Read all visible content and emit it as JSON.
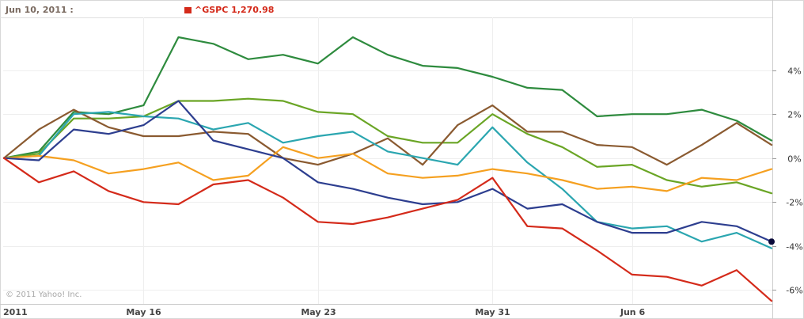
{
  "header": {
    "date_label": "Jun 10, 2011 :",
    "legend_label": "^GSPC 1,270.98"
  },
  "copyright": "© 2011 Yahoo! Inc.",
  "chart_data": {
    "type": "line",
    "x_labels": [
      "2011",
      "May 16",
      "May 23",
      "May 31",
      "Jun 6"
    ],
    "y_ticks": [
      "-6%",
      "-4%",
      "-2%",
      "0%",
      "2%",
      "4%"
    ],
    "ylim": [
      -6.6,
      6.4
    ],
    "grid": true,
    "x": [
      "May 10",
      "May 11",
      "May 12",
      "May 13",
      "May 16",
      "May 17",
      "May 18",
      "May 19",
      "May 20",
      "May 23",
      "May 24",
      "May 25",
      "May 26",
      "May 27",
      "May 31",
      "Jun 1",
      "Jun 2",
      "Jun 3",
      "Jun 6",
      "Jun 7",
      "Jun 8",
      "Jun 9",
      "Jun 10"
    ],
    "series": [
      {
        "name": "^GSPC 1,270.98",
        "color": "#d42a1a",
        "values": [
          0.0,
          -1.1,
          -0.6,
          -1.5,
          -2.0,
          -2.1,
          -1.2,
          -1.0,
          -1.8,
          -2.9,
          -3.0,
          -2.7,
          -2.3,
          -1.9,
          -0.9,
          -3.1,
          -3.2,
          -4.2,
          -5.3,
          -5.4,
          -5.8,
          -5.1,
          -6.5
        ]
      },
      {
        "name": "",
        "color": "#2e8b3e",
        "values": [
          0.0,
          0.3,
          2.1,
          2.0,
          2.4,
          5.5,
          5.2,
          4.5,
          4.7,
          4.3,
          5.5,
          4.7,
          4.2,
          4.1,
          3.7,
          3.2,
          3.1,
          1.9,
          2.0,
          2.0,
          2.2,
          1.7,
          0.8
        ]
      },
      {
        "name": "",
        "color": "#6aa525",
        "values": [
          0.0,
          0.2,
          1.8,
          1.8,
          1.9,
          2.6,
          2.6,
          2.7,
          2.6,
          2.1,
          2.0,
          1.0,
          0.7,
          0.7,
          2.0,
          1.1,
          0.5,
          -0.4,
          -0.3,
          -1.0,
          -1.3,
          -1.1,
          -1.6
        ]
      },
      {
        "name": "",
        "color": "#8a5a30",
        "values": [
          0.0,
          1.3,
          2.2,
          1.4,
          1.0,
          1.0,
          1.2,
          1.1,
          0.0,
          -0.3,
          0.2,
          0.9,
          -0.3,
          1.5,
          2.4,
          1.2,
          1.2,
          0.6,
          0.5,
          -0.3,
          0.6,
          1.6,
          0.6
        ]
      },
      {
        "name": "",
        "color": "#2ba6b0",
        "values": [
          0.0,
          0.1,
          2.0,
          2.1,
          1.9,
          1.8,
          1.3,
          1.6,
          0.7,
          1.0,
          1.2,
          0.3,
          0.0,
          -0.3,
          1.4,
          -0.2,
          -1.4,
          -2.9,
          -3.2,
          -3.1,
          -3.8,
          -3.4,
          -4.1
        ]
      },
      {
        "name": "",
        "color": "#f5a020",
        "values": [
          0.0,
          0.1,
          -0.1,
          -0.7,
          -0.5,
          -0.2,
          -1.0,
          -0.8,
          0.5,
          0.0,
          0.2,
          -0.7,
          -0.9,
          -0.8,
          -0.5,
          -0.7,
          -1.0,
          -1.4,
          -1.3,
          -1.5,
          -0.9,
          -1.0,
          -0.5
        ]
      },
      {
        "name": "",
        "color": "#2d3e8f",
        "values": [
          0.0,
          -0.1,
          1.3,
          1.1,
          1.5,
          2.6,
          0.8,
          0.4,
          0.0,
          -1.1,
          -1.4,
          -1.8,
          -2.1,
          -2.0,
          -1.4,
          -2.3,
          -2.1,
          -2.9,
          -3.4,
          -3.4,
          -2.9,
          -3.1,
          -3.8
        ]
      }
    ]
  }
}
